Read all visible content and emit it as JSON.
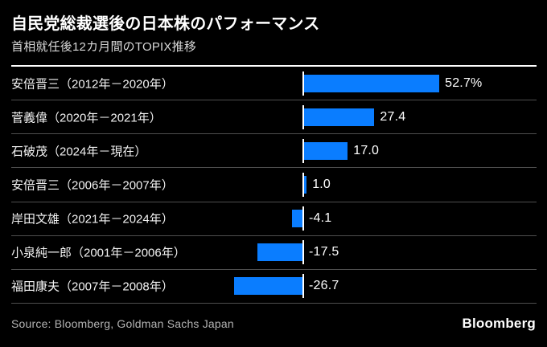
{
  "header": {
    "title": "自民党総裁選後の日本株のパフォーマンス",
    "subtitle": "首相就任後12カ月間のTOPIX推移"
  },
  "footer": {
    "source": "Source: Bloomberg, Goldman Sachs Japan",
    "logo": "Bloomberg"
  },
  "colors": {
    "background": "#000000",
    "bar": "#0a7dff",
    "rule": "#ffffff",
    "separator": "#4e4e4e",
    "title": "#ffffff",
    "subtitle": "#d9d9d9",
    "source": "#b3b3b3"
  },
  "chart_data": {
    "type": "bar",
    "orientation": "horizontal",
    "title": "自民党総裁選後の日本株のパフォーマンス",
    "subtitle": "首相就任後12カ月間のTOPIX推移",
    "unit": "%",
    "xlim": [
      -30,
      91
    ],
    "grid": false,
    "legend": false,
    "categories": [
      "安倍晋三（2012年－2020年）",
      "菅義偉（2020年－2021年）",
      "石破茂（2024年－現在）",
      "安倍晋三（2006年－2007年）",
      "岸田文雄（2021年－2024年）",
      "小泉純一郎（2001年－2006年）",
      "福田康夫（2007年－2008年）"
    ],
    "values": [
      52.7,
      27.4,
      17.0,
      1.0,
      -4.1,
      -17.5,
      -26.7
    ],
    "value_labels": [
      "52.7%",
      "27.4",
      "17.0",
      "1.0",
      "-4.1",
      "-17.5",
      "-26.7"
    ]
  }
}
